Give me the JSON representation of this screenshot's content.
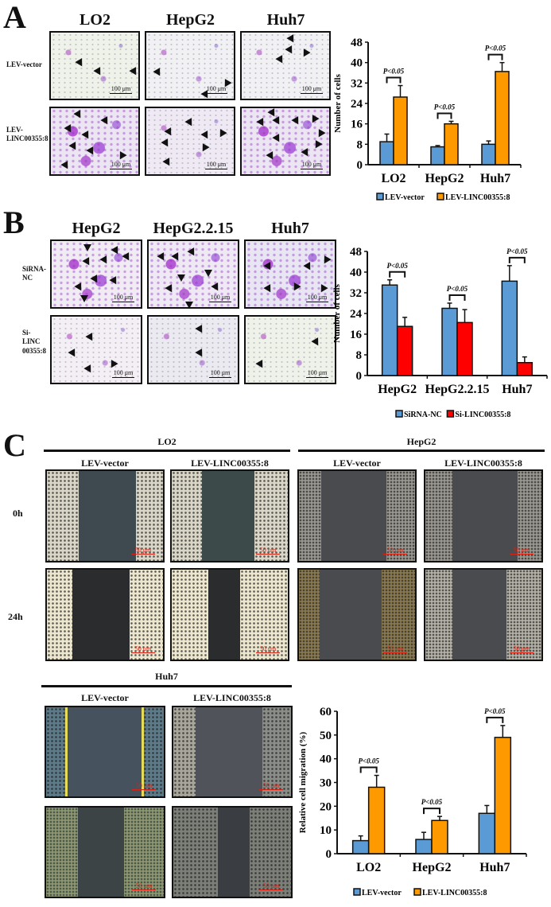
{
  "panels": {
    "A": {
      "letter": "A",
      "columns": [
        "LO2",
        "HepG2",
        "Huh7"
      ],
      "rows": [
        "LEV-vector",
        "LEV-\nLINC00355:8"
      ],
      "row_lines": [
        [
          "LEV-vector"
        ],
        [
          "LEV-",
          "LINC00355:8"
        ]
      ],
      "scale": "100 μm"
    },
    "B": {
      "letter": "B",
      "columns": [
        "HepG2",
        "HepG2.2.15",
        "Huh7"
      ],
      "row_lines": [
        [
          "SiRNA-",
          "NC"
        ],
        [
          "Si-",
          "LINC",
          "00355:8"
        ]
      ],
      "scale": "100 μm"
    },
    "C": {
      "letter": "C",
      "groups": [
        "LO2",
        "HepG2",
        "Huh7"
      ],
      "conditions": [
        "LEV-vector",
        "LEV-LINC00355:8"
      ],
      "timepoints": [
        "0h",
        "24h"
      ],
      "scale": "50 μm"
    }
  },
  "chart_data": [
    {
      "id": "A",
      "type": "bar",
      "title": "",
      "xlabel": "",
      "ylabel": "Number of cells",
      "ylim": [
        0,
        48
      ],
      "yticks": [
        0,
        8,
        16,
        24,
        32,
        40,
        48
      ],
      "categories": [
        "LO2",
        "HepG2",
        "Huh7"
      ],
      "series": [
        {
          "name": "LEV-vector",
          "color": "#5b9bd5",
          "values": [
            9,
            7,
            8
          ],
          "errors": [
            3,
            0.5,
            1.3
          ]
        },
        {
          "name": "LEV-LINC00355:8",
          "color": "#ff9900",
          "values": [
            26.5,
            16,
            36.5
          ],
          "errors": [
            4.5,
            1,
            3.5
          ]
        }
      ],
      "annotations": [
        "P<0.05",
        "P<0.05",
        "P<0.05"
      ],
      "grid": false,
      "legend_position": "bottom"
    },
    {
      "id": "B",
      "type": "bar",
      "title": "",
      "xlabel": "",
      "ylabel": "Number of cells",
      "ylim": [
        0,
        48
      ],
      "yticks": [
        0,
        8,
        16,
        24,
        32,
        40,
        48
      ],
      "categories": [
        "HepG2",
        "HepG2.2.15",
        "Huh7"
      ],
      "series": [
        {
          "name": "SiRNA-NC",
          "color": "#5b9bd5",
          "values": [
            35,
            26,
            36.5
          ],
          "errors": [
            2,
            2,
            6
          ]
        },
        {
          "name": "Si-LINC00355:8",
          "color": "#ff0000",
          "values": [
            19,
            20.5,
            5
          ],
          "errors": [
            3.5,
            5,
            2.2
          ]
        }
      ],
      "annotations": [
        "P<0.05",
        "P<0.05",
        "P<0.05"
      ],
      "grid": false,
      "legend_position": "bottom"
    },
    {
      "id": "C",
      "type": "bar",
      "title": "",
      "xlabel": "",
      "ylabel": "Relative cell migration (%)",
      "ylim": [
        0,
        60
      ],
      "yticks": [
        0,
        10,
        20,
        30,
        40,
        50,
        60
      ],
      "categories": [
        "LO2",
        "HepG2",
        "Huh7"
      ],
      "series": [
        {
          "name": "LEV-vector",
          "color": "#5b9bd5",
          "values": [
            5.5,
            6,
            17
          ],
          "errors": [
            2,
            3,
            3.3
          ]
        },
        {
          "name": "LEV-LINC00355:8",
          "color": "#ff9900",
          "values": [
            28,
            14,
            49
          ],
          "errors": [
            5,
            1.7,
            5
          ]
        }
      ],
      "annotations": [
        "P<0.05",
        "P<0.05",
        "P<0.05"
      ],
      "grid": false,
      "legend_position": "bottom"
    }
  ]
}
